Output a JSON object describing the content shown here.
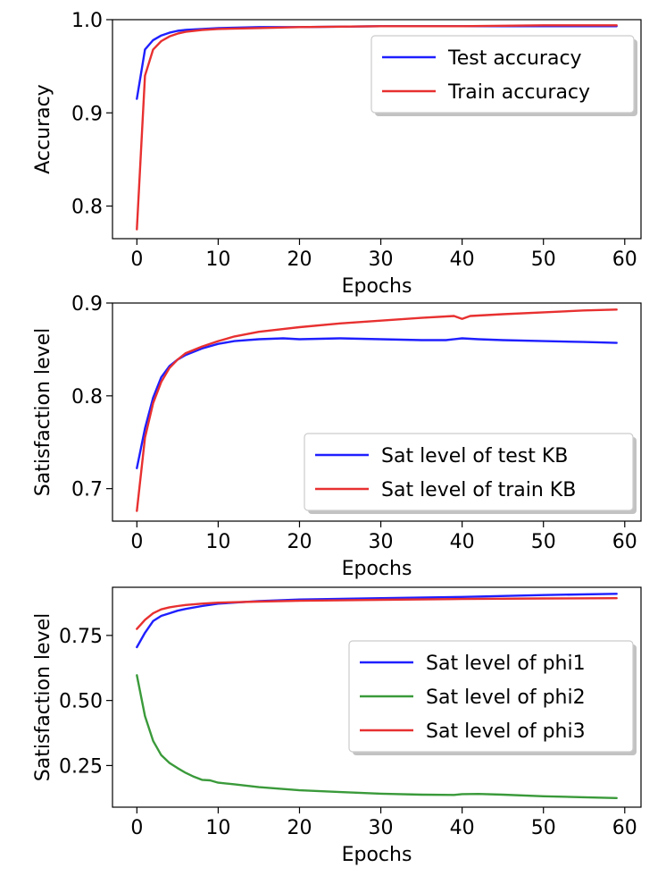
{
  "chart_data": [
    {
      "type": "line",
      "xlabel": "Epochs",
      "ylabel": "Accuracy",
      "xlim": [
        -3,
        62
      ],
      "ylim": [
        0.765,
        1.0
      ],
      "xticks": [
        0,
        10,
        20,
        30,
        40,
        50,
        60
      ],
      "yticks": [
        0.8,
        0.9,
        1.0
      ],
      "ytick_labels": [
        "0.8",
        "0.9",
        "1.0"
      ],
      "legend_position": "top-right",
      "series": [
        {
          "name": "Test accuracy",
          "color": "#1f1fff",
          "x": [
            0,
            1,
            2,
            3,
            4,
            5,
            6,
            8,
            10,
            15,
            20,
            30,
            40,
            50,
            59
          ],
          "y": [
            0.915,
            0.968,
            0.978,
            0.983,
            0.986,
            0.988,
            0.989,
            0.99,
            0.991,
            0.992,
            0.992,
            0.993,
            0.993,
            0.993,
            0.993
          ]
        },
        {
          "name": "Train accuracy",
          "color": "#e83030",
          "x": [
            0,
            1,
            2,
            3,
            4,
            5,
            6,
            8,
            10,
            15,
            20,
            30,
            40,
            50,
            59
          ],
          "y": [
            0.775,
            0.94,
            0.968,
            0.977,
            0.982,
            0.985,
            0.987,
            0.989,
            0.99,
            0.991,
            0.992,
            0.993,
            0.993,
            0.994,
            0.994
          ]
        }
      ]
    },
    {
      "type": "line",
      "xlabel": "Epochs",
      "ylabel": "Satisfaction level",
      "xlim": [
        -3,
        62
      ],
      "ylim": [
        0.665,
        0.9
      ],
      "xticks": [
        0,
        10,
        20,
        30,
        40,
        50,
        60
      ],
      "yticks": [
        0.7,
        0.8,
        0.9
      ],
      "ytick_labels": [
        "0.7",
        "0.8",
        "0.9"
      ],
      "legend_position": "lower-right",
      "series": [
        {
          "name": "Sat level of test KB",
          "color": "#1f1fff",
          "x": [
            0,
            1,
            2,
            3,
            4,
            5,
            6,
            8,
            10,
            12,
            15,
            18,
            20,
            25,
            30,
            35,
            38,
            40,
            42,
            45,
            50,
            55,
            59
          ],
          "y": [
            0.722,
            0.765,
            0.798,
            0.82,
            0.832,
            0.839,
            0.844,
            0.851,
            0.856,
            0.859,
            0.861,
            0.862,
            0.861,
            0.862,
            0.861,
            0.86,
            0.86,
            0.862,
            0.861,
            0.86,
            0.859,
            0.858,
            0.857
          ]
        },
        {
          "name": "Sat level of train KB",
          "color": "#e83030",
          "x": [
            0,
            1,
            2,
            3,
            4,
            5,
            6,
            8,
            10,
            12,
            15,
            18,
            20,
            25,
            30,
            35,
            39,
            40,
            41,
            45,
            50,
            55,
            59
          ],
          "y": [
            0.676,
            0.755,
            0.792,
            0.815,
            0.83,
            0.839,
            0.846,
            0.853,
            0.859,
            0.864,
            0.869,
            0.872,
            0.874,
            0.878,
            0.881,
            0.884,
            0.886,
            0.883,
            0.886,
            0.888,
            0.89,
            0.892,
            0.893
          ]
        }
      ]
    },
    {
      "type": "line",
      "xlabel": "Epochs",
      "ylabel": "Satisfaction level",
      "xlim": [
        -3,
        62
      ],
      "ylim": [
        0.09,
        0.935
      ],
      "xticks": [
        0,
        10,
        20,
        30,
        40,
        50,
        60
      ],
      "yticks": [
        0.25,
        0.5,
        0.75
      ],
      "ytick_labels": [
        "0.25",
        "0.50",
        "0.75"
      ],
      "legend_position": "center-right",
      "series": [
        {
          "name": "Sat level of phi1",
          "color": "#1f1fff",
          "x": [
            0,
            1,
            2,
            3,
            4,
            5,
            6,
            8,
            10,
            15,
            20,
            30,
            40,
            50,
            59
          ],
          "y": [
            0.705,
            0.76,
            0.805,
            0.825,
            0.835,
            0.845,
            0.852,
            0.863,
            0.872,
            0.882,
            0.888,
            0.893,
            0.898,
            0.905,
            0.91
          ]
        },
        {
          "name": "Sat level of phi2",
          "color": "#3a9a3a",
          "x": [
            0,
            1,
            2,
            3,
            4,
            5,
            6,
            7,
            8,
            9,
            10,
            12,
            15,
            20,
            25,
            30,
            35,
            39,
            40,
            42,
            45,
            50,
            55,
            59
          ],
          "y": [
            0.597,
            0.44,
            0.345,
            0.29,
            0.26,
            0.24,
            0.222,
            0.207,
            0.195,
            0.193,
            0.184,
            0.178,
            0.167,
            0.155,
            0.148,
            0.142,
            0.138,
            0.137,
            0.14,
            0.141,
            0.138,
            0.132,
            0.128,
            0.125
          ]
        },
        {
          "name": "Sat level of phi3",
          "color": "#e83030",
          "x": [
            0,
            1,
            2,
            3,
            4,
            5,
            6,
            8,
            10,
            15,
            20,
            30,
            40,
            50,
            59
          ],
          "y": [
            0.775,
            0.81,
            0.835,
            0.85,
            0.858,
            0.863,
            0.867,
            0.872,
            0.876,
            0.88,
            0.883,
            0.887,
            0.89,
            0.892,
            0.893
          ]
        }
      ]
    }
  ]
}
